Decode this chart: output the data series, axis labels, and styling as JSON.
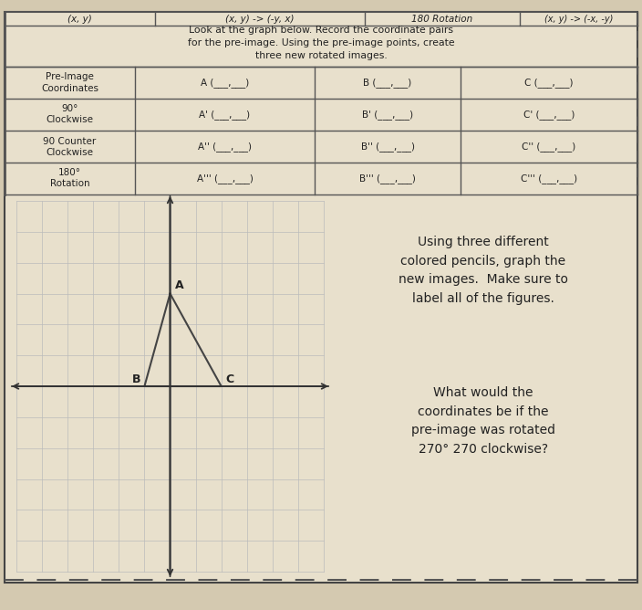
{
  "bg_color": "#d4c9b0",
  "paper_color": "#e8e0cc",
  "header_col1": "(x, y)",
  "header_col2": "(x, y) -> (-y, x)",
  "header_col3": "180 Rotation",
  "header_col4": "(x, y) -> (-x, -y)",
  "intro_line1": "Look at the graph below. Record the coordinate pairs",
  "intro_line2": "for the pre-image. Using the pre-image points, create",
  "intro_line3": "three new rotated images.",
  "row0_label1": "Pre-Image",
  "row0_label2": "Coordinates",
  "row1_label1": "90",
  "row1_label2": "Clockwise",
  "row2_label1": "90 Counter",
  "row2_label2": "Clockwise",
  "row3_label1": "180",
  "row3_label2": "Rotation",
  "cell_A0": "A (___,___)",
  "cell_B0": "B (___,___)",
  "cell_C0": "C (___,___)",
  "cell_A1": "A' (___,___)",
  "cell_B1": "B' (___,___)",
  "cell_C1": "C' (___,___)",
  "cell_A2": "A'' (___,___)",
  "cell_B2": "B'' (___,___)",
  "cell_C2": "C'' (___,___)",
  "cell_A3": "A''' (___,___)",
  "cell_B3": "B''' (___,___)",
  "cell_C3": "C''' (___,___)",
  "tri_A": [
    0,
    3
  ],
  "tri_B": [
    -1,
    0
  ],
  "tri_C": [
    2,
    0
  ],
  "right_text1_l1": "Using three different",
  "right_text1_l2": "colored pencils, graph the",
  "right_text1_l3": "new images.  Make sure to",
  "right_text1_l4": "label all of the figures.",
  "right_text2_l1": "What would the",
  "right_text2_l2": "coordinates be if the",
  "right_text2_l3": "pre-image was rotated",
  "right_text2_l4": "270 clockwise?"
}
